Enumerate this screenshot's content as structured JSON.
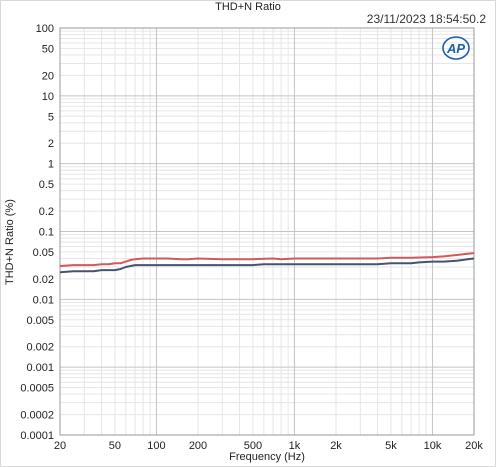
{
  "chart_data": {
    "type": "line",
    "title": "THD+N Ratio",
    "timestamp": "23/11/2023 18:54:50.2",
    "xlabel": "Frequency (Hz)",
    "ylabel": "THD+N Ratio (%)",
    "xscale": "log",
    "yscale": "log",
    "xlim": [
      20,
      20000
    ],
    "ylim": [
      0.0001,
      100
    ],
    "grid": true,
    "x_ticks": [
      {
        "value": 20,
        "label": "20"
      },
      {
        "value": 50,
        "label": "50"
      },
      {
        "value": 100,
        "label": "100"
      },
      {
        "value": 200,
        "label": "200"
      },
      {
        "value": 500,
        "label": "500"
      },
      {
        "value": 1000,
        "label": "1k"
      },
      {
        "value": 2000,
        "label": "2k"
      },
      {
        "value": 5000,
        "label": "5k"
      },
      {
        "value": 10000,
        "label": "10k"
      },
      {
        "value": 20000,
        "label": "20k"
      }
    ],
    "y_ticks": [
      {
        "value": 100,
        "label": "100"
      },
      {
        "value": 50,
        "label": "50"
      },
      {
        "value": 20,
        "label": "20"
      },
      {
        "value": 10,
        "label": "10"
      },
      {
        "value": 5,
        "label": "5"
      },
      {
        "value": 2,
        "label": "2"
      },
      {
        "value": 1,
        "label": "1"
      },
      {
        "value": 0.5,
        "label": "0.5"
      },
      {
        "value": 0.2,
        "label": "0.2"
      },
      {
        "value": 0.1,
        "label": "0.1"
      },
      {
        "value": 0.05,
        "label": "0.05"
      },
      {
        "value": 0.02,
        "label": "0.02"
      },
      {
        "value": 0.01,
        "label": "0.01"
      },
      {
        "value": 0.005,
        "label": "0.005"
      },
      {
        "value": 0.002,
        "label": "0.002"
      },
      {
        "value": 0.001,
        "label": "0.001"
      },
      {
        "value": 0.0005,
        "label": "0.0005"
      },
      {
        "value": 0.0002,
        "label": "0.0002"
      },
      {
        "value": 0.0001,
        "label": "0.0001"
      }
    ],
    "series": [
      {
        "color": "#d05a5a",
        "x": [
          20,
          25,
          30,
          35,
          40,
          45,
          50,
          55,
          60,
          65,
          70,
          80,
          100,
          120,
          150,
          170,
          200,
          300,
          500,
          700,
          800,
          1000,
          2000,
          3000,
          4000,
          5000,
          7000,
          10000,
          12000,
          15000,
          18000,
          20000
        ],
        "y": [
          0.031,
          0.032,
          0.032,
          0.032,
          0.033,
          0.033,
          0.034,
          0.034,
          0.036,
          0.038,
          0.039,
          0.04,
          0.04,
          0.04,
          0.039,
          0.039,
          0.04,
          0.039,
          0.039,
          0.04,
          0.039,
          0.04,
          0.04,
          0.04,
          0.04,
          0.041,
          0.041,
          0.042,
          0.043,
          0.045,
          0.047,
          0.048
        ]
      },
      {
        "color": "#445470",
        "x": [
          20,
          25,
          30,
          35,
          40,
          45,
          50,
          55,
          60,
          65,
          70,
          80,
          100,
          150,
          200,
          300,
          500,
          600,
          1000,
          2000,
          3000,
          4000,
          5000,
          7000,
          8000,
          10000,
          12000,
          15000,
          18000,
          20000
        ],
        "y": [
          0.025,
          0.026,
          0.026,
          0.026,
          0.027,
          0.027,
          0.027,
          0.028,
          0.03,
          0.031,
          0.032,
          0.032,
          0.032,
          0.032,
          0.032,
          0.032,
          0.032,
          0.033,
          0.033,
          0.033,
          0.033,
          0.033,
          0.034,
          0.034,
          0.035,
          0.036,
          0.036,
          0.037,
          0.039,
          0.04
        ]
      }
    ]
  },
  "logo": {
    "text": "AP",
    "color": "#1f5fa8"
  }
}
